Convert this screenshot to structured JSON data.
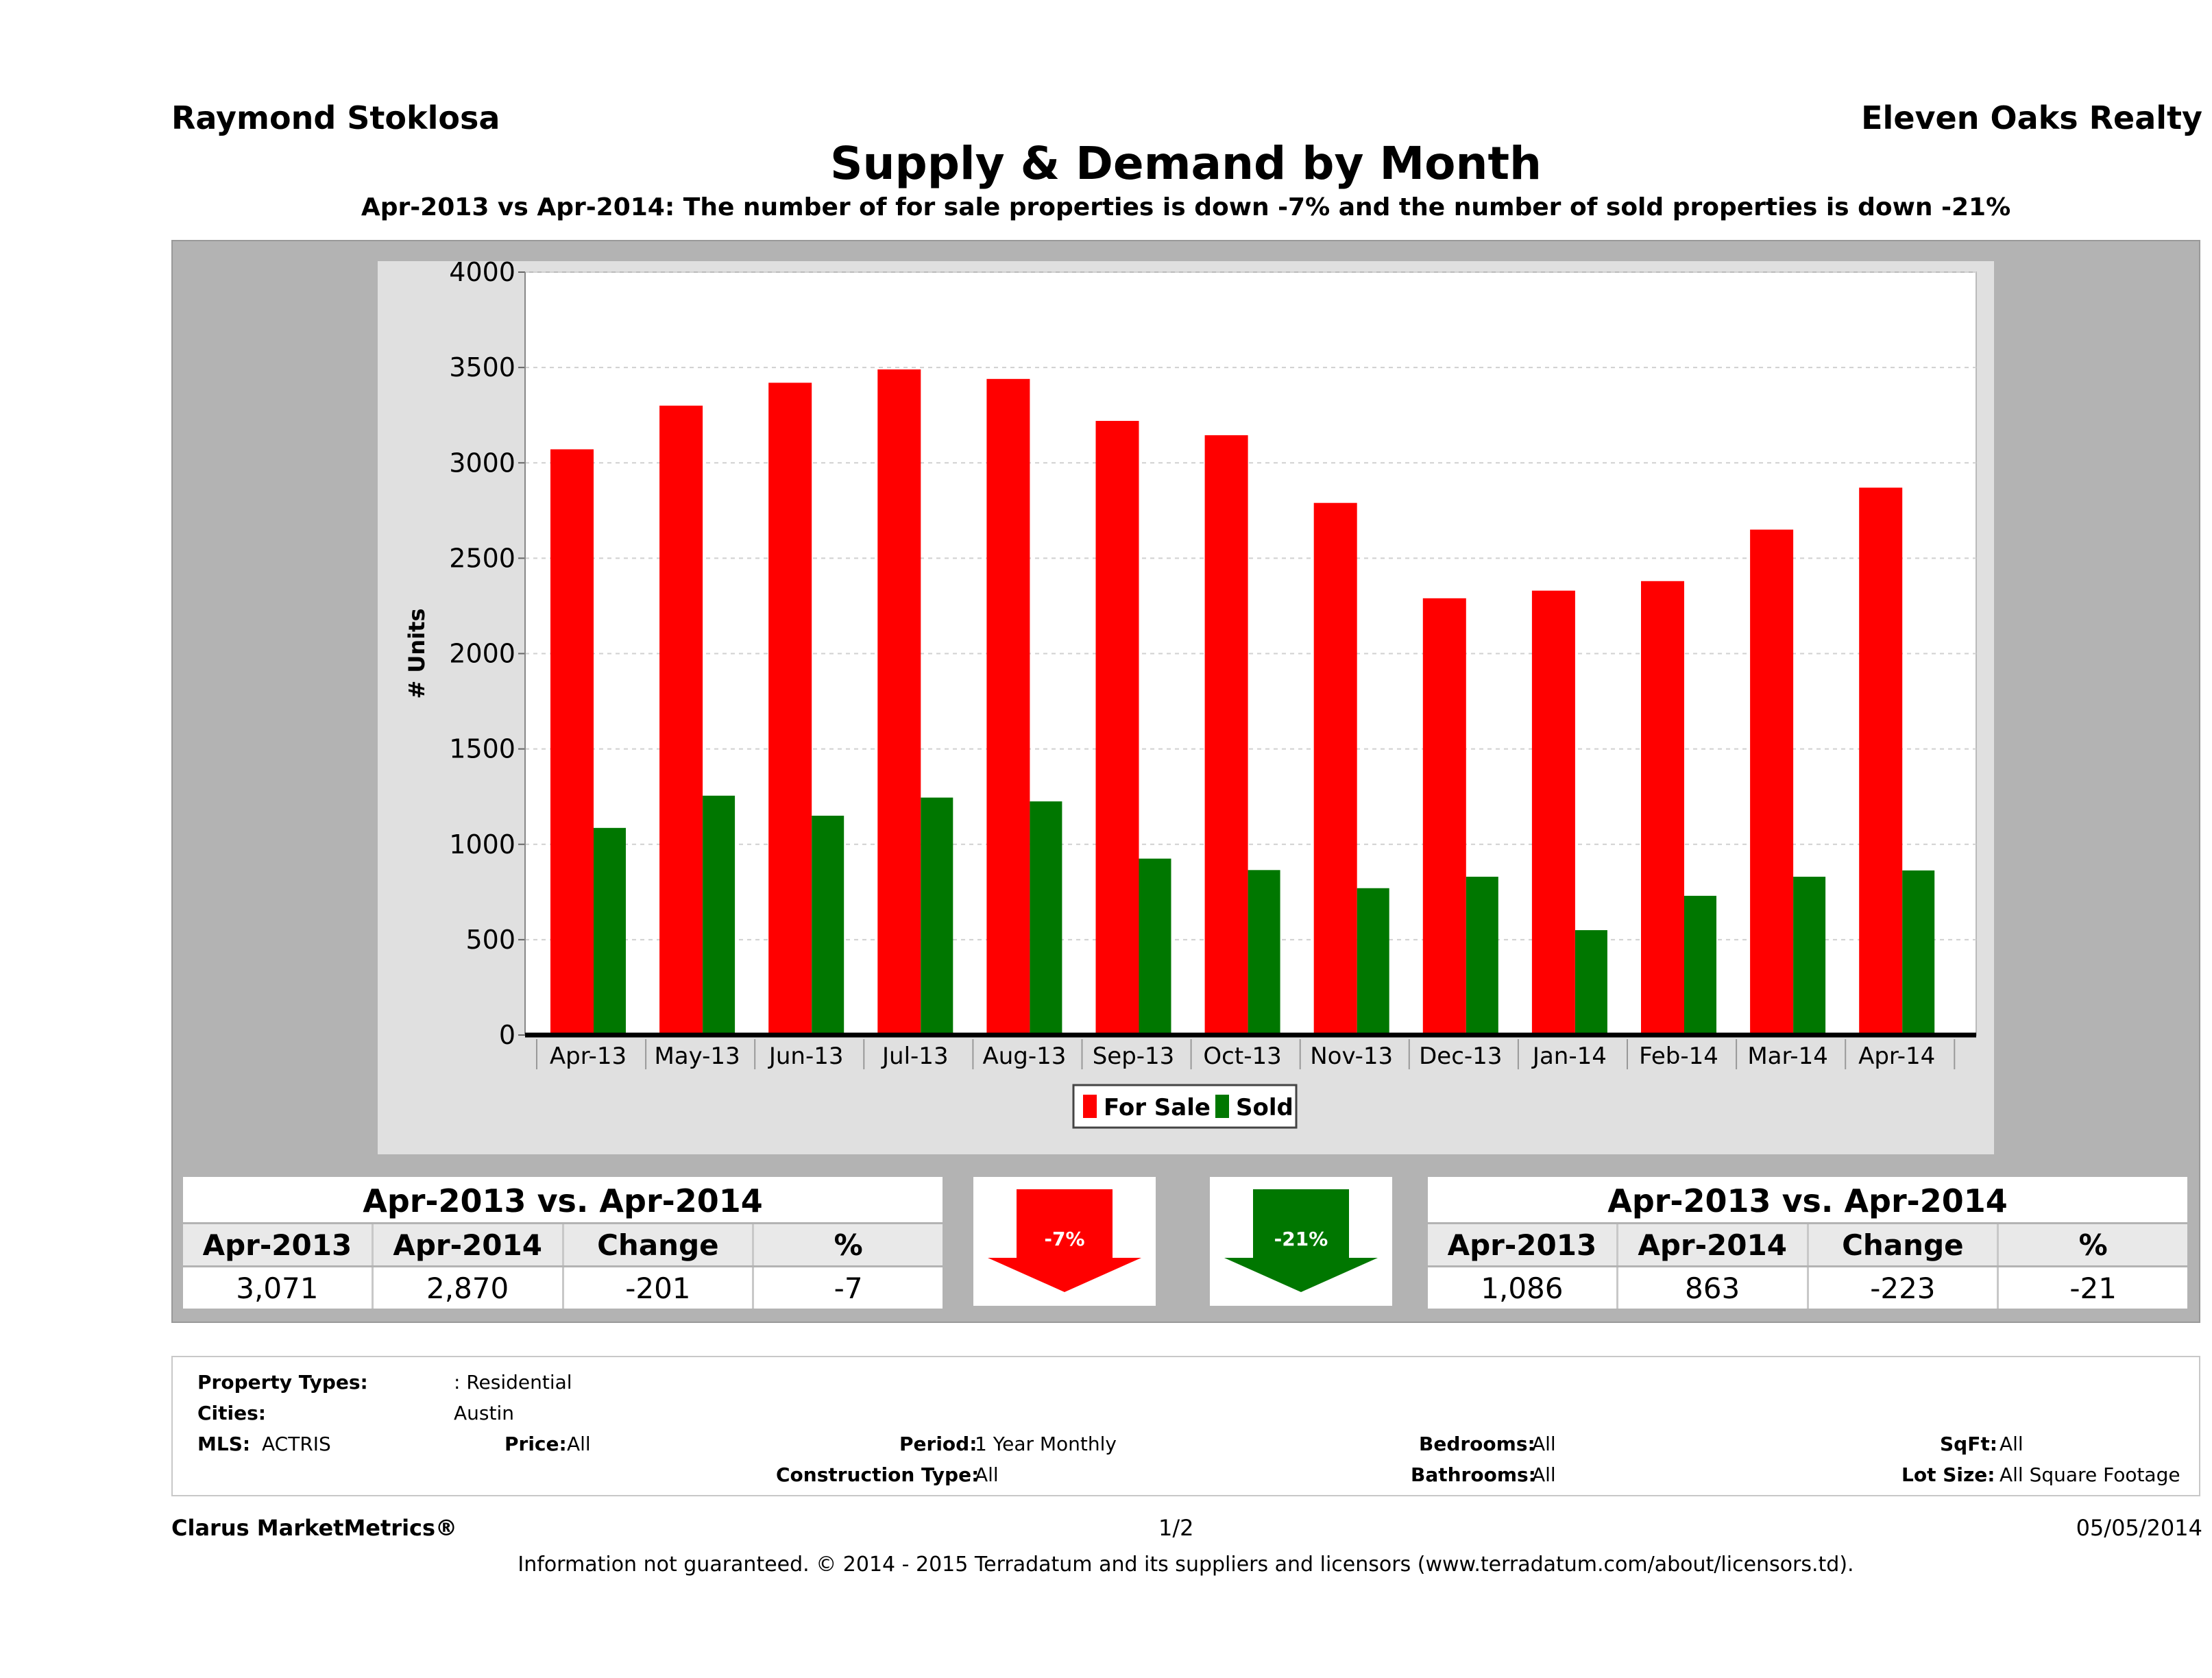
{
  "header": {
    "agent": "Raymond Stoklosa",
    "brokerage": "Eleven Oaks Realty",
    "title": "Supply & Demand by Month",
    "subtitle": "Apr-2013 vs Apr-2014: The number of for sale properties is down -7% and the number of sold properties is down -21%"
  },
  "chart_data": {
    "type": "bar",
    "categories": [
      "Apr-13",
      "May-13",
      "Jun-13",
      "Jul-13",
      "Aug-13",
      "Sep-13",
      "Oct-13",
      "Nov-13",
      "Dec-13",
      "Jan-14",
      "Feb-14",
      "Mar-14",
      "Apr-14"
    ],
    "series": [
      {
        "name": "For Sale",
        "color": "#ff0000",
        "values": [
          3071,
          3300,
          3420,
          3490,
          3440,
          3220,
          3145,
          2790,
          2290,
          2330,
          2380,
          2650,
          2870
        ]
      },
      {
        "name": "Sold",
        "color": "#007700",
        "values": [
          1086,
          1255,
          1150,
          1245,
          1225,
          925,
          865,
          770,
          830,
          550,
          730,
          830,
          863
        ]
      }
    ],
    "ylabel": "# Units",
    "xlabel": "",
    "ylim": [
      0,
      4000
    ],
    "yticks": [
      0,
      500,
      1000,
      1500,
      2000,
      2500,
      3000,
      3500,
      4000
    ],
    "grid": true,
    "legend": "bottom-center"
  },
  "for_sale_stats": {
    "heading": "Apr-2013 vs. Apr-2014",
    "columns": [
      "Apr-2013",
      "Apr-2014",
      "Change",
      "%"
    ],
    "values": [
      "3,071",
      "2,870",
      "-201",
      "-7"
    ]
  },
  "sold_stats": {
    "heading": "Apr-2013 vs. Apr-2014",
    "columns": [
      "Apr-2013",
      "Apr-2014",
      "Change",
      "%"
    ],
    "values": [
      "1,086",
      "863",
      "-223",
      "-21"
    ]
  },
  "arrows": {
    "for_sale": {
      "label": "-7%",
      "color": "#ff0000",
      "icon": "down-arrow-icon"
    },
    "sold": {
      "label": "-21%",
      "color": "#007700",
      "icon": "down-arrow-icon"
    }
  },
  "criteria": {
    "property_types_label": "Property Types:",
    "property_types_value": ": Residential",
    "cities_label": "Cities:",
    "cities_value": "Austin",
    "mls_label": "MLS:",
    "mls_value": "ACTRIS",
    "price_label": "Price:",
    "price_value": "All",
    "period_label": "Period:",
    "period_value": "1 Year Monthly",
    "construction_label": "Construction Type:",
    "construction_value": "All",
    "bedrooms_label": "Bedrooms:",
    "bedrooms_value": "All",
    "bathrooms_label": "Bathrooms:",
    "bathrooms_value": "All",
    "sqft_label": "SqFt:",
    "sqft_value": "All",
    "lot_label": "Lot Size:",
    "lot_value": "All Square Footage"
  },
  "footer": {
    "product": "Clarus MarketMetrics®",
    "page": "1/2",
    "date": "05/05/2014",
    "disclaimer": "Information not guaranteed. © 2014 - 2015 Terradatum and its suppliers and licensors (www.terradatum.com/about/licensors.td)."
  }
}
